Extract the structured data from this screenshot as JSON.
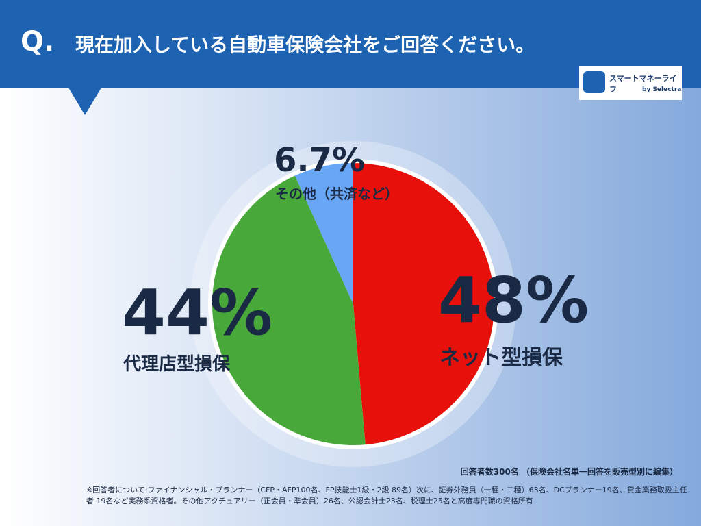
{
  "header": {
    "q": "Q.",
    "logo_name": "スマートマネーライフ",
    "logo_by": "by Selectra"
  },
  "chart_data": {
    "type": "pie",
    "title": "現在加入している自動車保険会社をご回答ください。",
    "categories": [
      "ネット型損保",
      "代理店型損保",
      "その他（共済など）"
    ],
    "values": [
      48,
      44,
      6.7
    ],
    "value_labels": [
      "48%",
      "44%",
      "6.7%"
    ],
    "colors": [
      "#e8100a",
      "#48a93a",
      "#68a6f6"
    ]
  },
  "notes": {
    "respondents": "回答者数300名 （保険会社名単一回答を販売型別に編集）",
    "footnote": "※回答者について:ファイナンシャル・プランナー（CFP・AFP100名、FP技能士1級・2級 89名）次に、証券外務員（一種・二種）63名、DCプランナー19名、貸金業務取扱主任者 19名など実務系資格者。その他アクチュアリー（正会員・準会員）26名、公認会計士23名、税理士25名と高度専門職の資格所有"
  }
}
